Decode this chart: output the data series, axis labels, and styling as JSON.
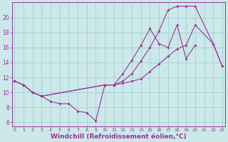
{
  "bg_color": "#cce8e8",
  "line_color": "#993399",
  "grid_color": "#99cccc",
  "xlabel": "Windchill (Refroidissement éolien,°C)",
  "xlabel_color": "#993399",
  "xlabel_fontsize": 6.5,
  "tick_color": "#993399",
  "ylim": [
    5.5,
    22.0
  ],
  "xlim": [
    -0.3,
    23.3
  ],
  "yticks": [
    6,
    8,
    10,
    12,
    14,
    16,
    18,
    20
  ],
  "xticks": [
    0,
    1,
    2,
    3,
    4,
    5,
    6,
    7,
    8,
    9,
    10,
    11,
    12,
    13,
    14,
    15,
    16,
    17,
    18,
    19,
    20,
    21,
    22,
    23
  ],
  "line1_x": [
    0,
    1,
    2,
    3,
    4,
    5,
    6,
    7,
    8,
    9,
    10,
    11,
    12,
    13,
    14,
    15,
    16,
    17,
    18,
    19,
    20
  ],
  "line1_y": [
    11.5,
    11.0,
    10.0,
    9.5,
    8.8,
    8.5,
    8.5,
    7.5,
    7.3,
    6.2,
    11.0,
    11.0,
    12.5,
    14.3,
    16.3,
    18.5,
    16.5,
    16.0,
    19.0,
    14.5,
    16.3
  ],
  "line2_x": [
    0,
    1,
    2,
    3,
    10,
    11,
    12,
    13,
    14,
    15,
    16,
    17,
    18,
    19,
    20,
    22,
    23
  ],
  "line2_y": [
    11.5,
    11.0,
    10.0,
    9.5,
    11.0,
    11.0,
    11.5,
    12.5,
    14.2,
    16.0,
    18.2,
    21.0,
    21.5,
    21.5,
    21.5,
    16.5,
    13.5
  ],
  "line3_x": [
    0,
    1,
    2,
    3,
    10,
    11,
    12,
    13,
    14,
    15,
    16,
    17,
    18,
    19,
    20,
    22,
    23
  ],
  "line3_y": [
    11.5,
    11.0,
    10.0,
    9.5,
    11.0,
    11.0,
    11.2,
    11.5,
    11.8,
    12.8,
    13.8,
    14.8,
    15.8,
    16.3,
    19.0,
    16.5,
    13.5
  ],
  "marker_size": 2.0,
  "line_width": 0.8
}
